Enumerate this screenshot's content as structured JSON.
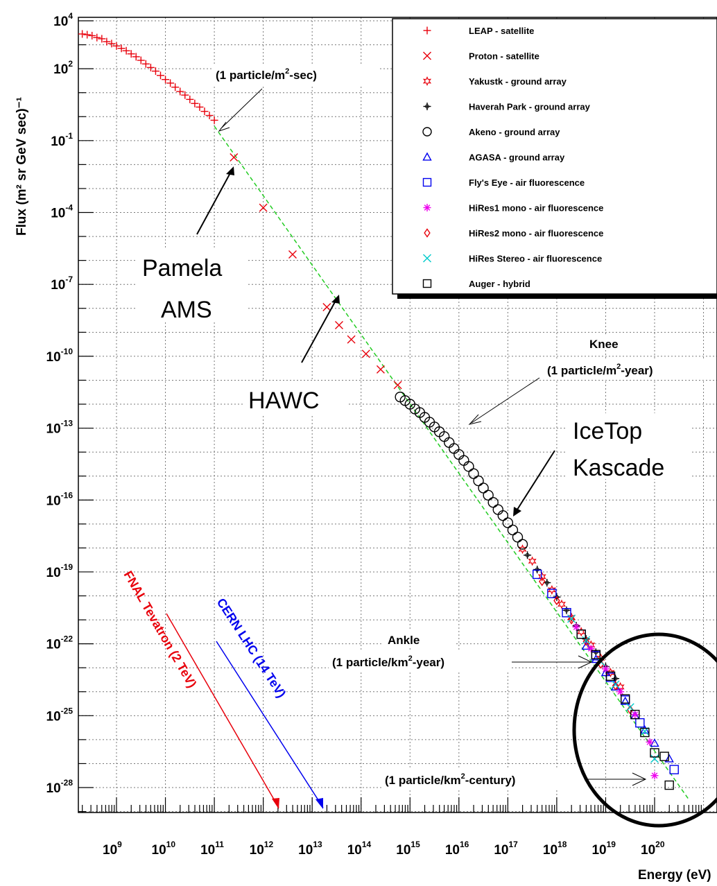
{
  "chart_data": {
    "type": "scatter",
    "xlabel": "Energy (eV)",
    "ylabel": "Flux (m² sr GeV sec)⁻¹",
    "x_scale": "log",
    "y_scale": "log",
    "xlim": [
      100000000.0,
      1e+21
    ],
    "ylim": [
      1e-29,
      10000.0
    ],
    "grid": true,
    "legend_position": "top-right",
    "x_ticks": [
      {
        "label": "10",
        "exp": "9",
        "value": 1000000000.0
      },
      {
        "label": "10",
        "exp": "10",
        "value": 10000000000.0
      },
      {
        "label": "10",
        "exp": "11",
        "value": 100000000000.0
      },
      {
        "label": "10",
        "exp": "12",
        "value": 1000000000000.0
      },
      {
        "label": "10",
        "exp": "13",
        "value": 10000000000000.0
      },
      {
        "label": "10",
        "exp": "14",
        "value": 100000000000000.0
      },
      {
        "label": "10",
        "exp": "15",
        "value": 1000000000000000.0
      },
      {
        "label": "10",
        "exp": "16",
        "value": 1e+16
      },
      {
        "label": "10",
        "exp": "17",
        "value": 1e+17
      },
      {
        "label": "10",
        "exp": "18",
        "value": 1e+18
      },
      {
        "label": "10",
        "exp": "19",
        "value": 1e+19
      },
      {
        "label": "10",
        "exp": "20",
        "value": 1e+20
      }
    ],
    "y_ticks": [
      {
        "label": "10",
        "exp": "4",
        "value": 10000.0
      },
      {
        "label": "10",
        "exp": "2",
        "value": 100.0
      },
      {
        "label": "10",
        "exp": "-1",
        "value": 0.1
      },
      {
        "label": "10",
        "exp": "-4",
        "value": 0.0001
      },
      {
        "label": "10",
        "exp": "-7",
        "value": 1e-07
      },
      {
        "label": "10",
        "exp": "-10",
        "value": 1e-10
      },
      {
        "label": "10",
        "exp": "-13",
        "value": 1e-13
      },
      {
        "label": "10",
        "exp": "-16",
        "value": 1e-16
      },
      {
        "label": "10",
        "exp": "-19",
        "value": 1e-19
      },
      {
        "label": "10",
        "exp": "-22",
        "value": 1e-22
      },
      {
        "label": "10",
        "exp": "-25",
        "value": 1e-25
      },
      {
        "label": "10",
        "exp": "-28",
        "value": 1e-28
      }
    ],
    "series": [
      {
        "name": "LEAP - satellite",
        "marker": "plus",
        "color": "#e8000b",
        "points": [
          [
            8.1,
            3.55
          ],
          [
            8.2,
            3.5
          ],
          [
            8.3,
            3.45
          ],
          [
            8.4,
            3.42
          ],
          [
            8.5,
            3.38
          ],
          [
            8.6,
            3.3
          ],
          [
            8.7,
            3.25
          ],
          [
            8.8,
            3.13
          ],
          [
            8.9,
            3.05
          ],
          [
            9.0,
            2.95
          ],
          [
            9.1,
            2.85
          ],
          [
            9.2,
            2.75
          ],
          [
            9.3,
            2.62
          ],
          [
            9.4,
            2.5
          ],
          [
            9.5,
            2.35
          ],
          [
            9.6,
            2.2
          ],
          [
            9.7,
            2.05
          ],
          [
            9.8,
            1.9
          ],
          [
            9.9,
            1.72
          ],
          [
            10.0,
            1.55
          ],
          [
            10.1,
            1.4
          ],
          [
            10.2,
            1.23
          ],
          [
            10.3,
            1.05
          ],
          [
            10.4,
            0.9
          ],
          [
            10.5,
            0.72
          ],
          [
            10.6,
            0.55
          ],
          [
            10.7,
            0.4
          ],
          [
            10.8,
            0.22
          ],
          [
            10.9,
            0.05
          ],
          [
            11.0,
            -0.15
          ]
        ]
      },
      {
        "name": "Proton - satellite",
        "marker": "x",
        "color": "#e8000b",
        "points": [
          [
            11.4,
            -1.7
          ],
          [
            12.0,
            -3.8
          ],
          [
            12.6,
            -5.75
          ],
          [
            13.3,
            -7.95
          ],
          [
            13.55,
            -8.7
          ],
          [
            13.8,
            -9.3
          ],
          [
            14.1,
            -9.9
          ],
          [
            14.4,
            -10.55
          ],
          [
            14.75,
            -11.2
          ]
        ]
      },
      {
        "name": "Yakustk - ground array",
        "marker": "star",
        "color": "#e8000b",
        "points": [
          [
            17.3,
            -18.05
          ],
          [
            17.5,
            -18.55
          ],
          [
            17.7,
            -19.2
          ],
          [
            17.9,
            -19.75
          ],
          [
            18.1,
            -20.35
          ],
          [
            18.3,
            -20.9
          ],
          [
            18.5,
            -21.5
          ],
          [
            18.7,
            -22.05
          ],
          [
            18.9,
            -22.6
          ],
          [
            19.1,
            -23.2
          ],
          [
            19.3,
            -23.8
          ]
        ]
      },
      {
        "name": "Haverah Park - ground array",
        "marker": "cross",
        "color": "#000000",
        "points": [
          [
            17.4,
            -18.3
          ],
          [
            17.6,
            -18.9
          ],
          [
            17.8,
            -19.45
          ],
          [
            18.0,
            -20.05
          ],
          [
            18.2,
            -20.6
          ],
          [
            18.4,
            -21.25
          ],
          [
            18.6,
            -21.8
          ],
          [
            18.8,
            -22.35
          ],
          [
            19.0,
            -22.95
          ],
          [
            19.2,
            -23.45
          ]
        ]
      },
      {
        "name": "Akeno - ground array",
        "marker": "circle",
        "color": "#000000",
        "points": [
          [
            14.8,
            -11.7
          ],
          [
            14.9,
            -11.85
          ],
          [
            15.0,
            -12.0
          ],
          [
            15.1,
            -12.2
          ],
          [
            15.2,
            -12.35
          ],
          [
            15.3,
            -12.55
          ],
          [
            15.4,
            -12.75
          ],
          [
            15.5,
            -12.95
          ],
          [
            15.6,
            -13.15
          ],
          [
            15.7,
            -13.35
          ],
          [
            15.8,
            -13.6
          ],
          [
            15.9,
            -13.85
          ],
          [
            16.0,
            -14.1
          ],
          [
            16.1,
            -14.35
          ],
          [
            16.2,
            -14.6
          ],
          [
            16.3,
            -14.9
          ],
          [
            16.4,
            -15.2
          ],
          [
            16.5,
            -15.5
          ],
          [
            16.6,
            -15.8
          ],
          [
            16.7,
            -16.1
          ],
          [
            16.8,
            -16.4
          ],
          [
            16.9,
            -16.65
          ],
          [
            17.0,
            -16.95
          ],
          [
            17.1,
            -17.25
          ],
          [
            17.2,
            -17.55
          ],
          [
            17.3,
            -17.85
          ]
        ]
      },
      {
        "name": "AGASA - ground array",
        "marker": "triangle",
        "color": "#0000ee",
        "points": [
          [
            18.6,
            -22.1
          ],
          [
            18.8,
            -22.65
          ],
          [
            19.0,
            -23.2
          ],
          [
            19.2,
            -23.8
          ],
          [
            19.4,
            -24.4
          ],
          [
            19.6,
            -25.0
          ],
          [
            19.8,
            -25.6
          ],
          [
            20.0,
            -26.15
          ],
          [
            20.3,
            -26.8
          ]
        ]
      },
      {
        "name": "Fly's Eye - air fluorescence",
        "marker": "square",
        "color": "#0000ee",
        "points": [
          [
            17.6,
            -19.1
          ],
          [
            17.9,
            -19.9
          ],
          [
            18.2,
            -20.7
          ],
          [
            18.5,
            -21.6
          ],
          [
            18.8,
            -22.5
          ],
          [
            19.1,
            -23.4
          ],
          [
            19.4,
            -24.35
          ],
          [
            19.7,
            -25.3
          ],
          [
            20.4,
            -27.25
          ]
        ]
      },
      {
        "name": "HiRes1 mono - air fluorescence",
        "marker": "asterisk",
        "color": "#ee00ee",
        "points": [
          [
            18.4,
            -21.3
          ],
          [
            18.7,
            -22.2
          ],
          [
            19.0,
            -23.05
          ],
          [
            19.3,
            -24.0
          ],
          [
            19.6,
            -24.95
          ],
          [
            19.9,
            -26.1
          ],
          [
            20.0,
            -27.5
          ]
        ]
      },
      {
        "name": "HiRes2 mono - air fluorescence",
        "marker": "diamond",
        "color": "#e8000b",
        "points": [
          [
            17.7,
            -19.4
          ],
          [
            18.0,
            -20.2
          ],
          [
            18.3,
            -21.0
          ],
          [
            18.6,
            -21.9
          ],
          [
            18.9,
            -22.85
          ],
          [
            19.2,
            -23.75
          ],
          [
            19.5,
            -24.75
          ]
        ]
      },
      {
        "name": "HiRes Stereo - air fluorescence",
        "marker": "x",
        "color": "#00cccc",
        "points": [
          [
            18.3,
            -20.95
          ],
          [
            18.6,
            -21.85
          ],
          [
            18.9,
            -22.75
          ],
          [
            19.2,
            -23.7
          ],
          [
            19.5,
            -24.65
          ],
          [
            19.8,
            -25.65
          ],
          [
            20.0,
            -26.8
          ]
        ]
      },
      {
        "name": "Auger - hybrid",
        "marker": "square",
        "color": "#000000",
        "points": [
          [
            18.5,
            -21.6
          ],
          [
            18.8,
            -22.45
          ],
          [
            19.1,
            -23.35
          ],
          [
            19.4,
            -24.3
          ],
          [
            19.6,
            -24.95
          ],
          [
            19.8,
            -25.7
          ],
          [
            20.0,
            -26.55
          ],
          [
            20.2,
            -26.7
          ],
          [
            20.3,
            -27.9
          ]
        ]
      }
    ],
    "reference_line": {
      "style": "dashed",
      "color": "#22cc22",
      "from": [
        11.0,
        -0.4
      ],
      "to": [
        20.7,
        -28.5
      ]
    }
  },
  "annotations": {
    "one_m2_sec": {
      "pre": "(1 particle/m",
      "exp": "2",
      "post": "-sec)"
    },
    "pamela": "Pamela",
    "ams": "AMS",
    "hawc": "HAWC",
    "knee": "Knee",
    "knee_rate": {
      "pre": "(1 particle/m",
      "exp": "2",
      "post": "-year)"
    },
    "icetop": "IceTop",
    "kascade": "Kascade",
    "ankle": "Ankle",
    "ankle_rate": {
      "pre": "(1 particle/km",
      "exp": "2",
      "post": "-year)"
    },
    "century_rate": {
      "pre": "(1 particle/km",
      "exp": "2",
      "post": "-century)"
    },
    "fnal": "FNAL Tevatron (2 TeV)",
    "cern": "CERN LHC (14 TeV)"
  },
  "colors": {
    "grid": "#777777",
    "red": "#e8000b",
    "blue": "#0000ee",
    "green": "#22cc22"
  }
}
